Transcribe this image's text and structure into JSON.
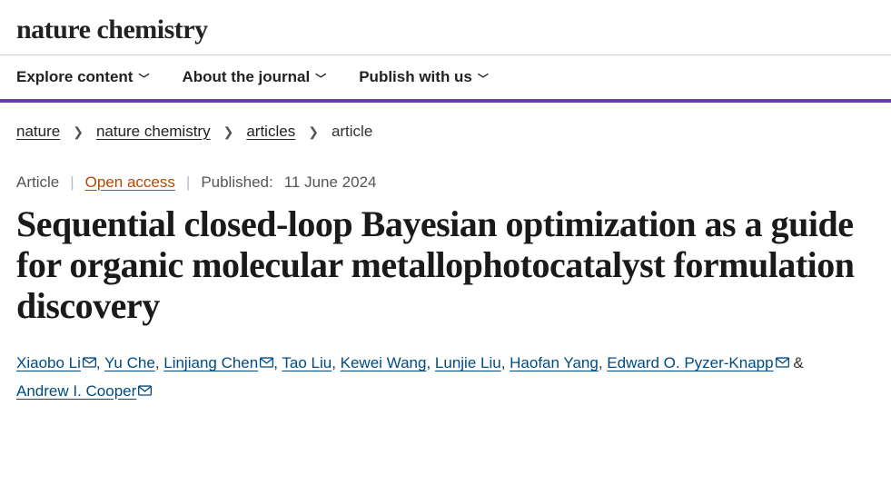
{
  "brand": "nature chemistry",
  "nav": {
    "explore": "Explore content",
    "about": "About the journal",
    "publish": "Publish with us"
  },
  "breadcrumbs": {
    "items": [
      "nature",
      "nature chemistry",
      "articles"
    ],
    "current": "article"
  },
  "meta": {
    "type": "Article",
    "open_access": "Open access",
    "published_label": "Published:",
    "published_date": "11 June 2024"
  },
  "title": "Sequential closed-loop Bayesian optimization as a guide for organic molecular metallophotocatalyst formulation discovery",
  "authors": [
    {
      "name": "Xiaobo Li",
      "corresponding": true
    },
    {
      "name": "Yu Che",
      "corresponding": false
    },
    {
      "name": "Linjiang Chen",
      "corresponding": true
    },
    {
      "name": "Tao Liu",
      "corresponding": false
    },
    {
      "name": "Kewei Wang",
      "corresponding": false
    },
    {
      "name": "Lunjie Liu",
      "corresponding": false
    },
    {
      "name": "Haofan Yang",
      "corresponding": false
    },
    {
      "name": "Edward O. Pyzer-Knapp",
      "corresponding": true
    },
    {
      "name": "Andrew I. Cooper",
      "corresponding": true
    }
  ],
  "colors": {
    "accent": "#6b3fa0",
    "link": "#004b83",
    "open_access": "#b34700"
  }
}
